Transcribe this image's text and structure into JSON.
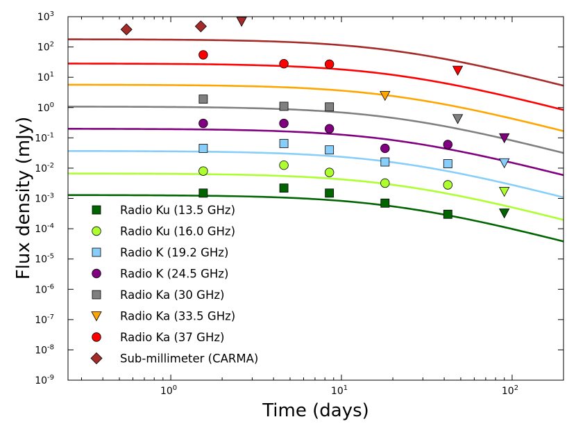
{
  "chart_data": {
    "type": "scatter",
    "xlabel": "Time (days)",
    "ylabel": "Flux density (mJy)",
    "xscale": "log",
    "yscale": "log",
    "xlim": [
      0.25,
      200
    ],
    "ylim": [
      1e-09,
      1000
    ],
    "x_ticks": [
      {
        "value": 1,
        "base": "10",
        "exp": "0"
      },
      {
        "value": 10,
        "base": "10",
        "exp": "1"
      },
      {
        "value": 100,
        "base": "10",
        "exp": "2"
      }
    ],
    "y_ticks": [
      {
        "value": 1e-09,
        "base": "10",
        "exp": "-9"
      },
      {
        "value": 1e-08,
        "base": "10",
        "exp": "-8"
      },
      {
        "value": 1e-07,
        "base": "10",
        "exp": "-7"
      },
      {
        "value": 1e-06,
        "base": "10",
        "exp": "-6"
      },
      {
        "value": 1e-05,
        "base": "10",
        "exp": "-5"
      },
      {
        "value": 0.0001,
        "base": "10",
        "exp": "-4"
      },
      {
        "value": 0.001,
        "base": "10",
        "exp": "-3"
      },
      {
        "value": 0.01,
        "base": "10",
        "exp": "-2"
      },
      {
        "value": 0.1,
        "base": "10",
        "exp": "-1"
      },
      {
        "value": 1,
        "base": "10",
        "exp": "0"
      },
      {
        "value": 10,
        "base": "10",
        "exp": "1"
      },
      {
        "value": 100,
        "base": "10",
        "exp": "2"
      },
      {
        "value": 1000,
        "base": "10",
        "exp": "3"
      }
    ],
    "grid": false,
    "legend_position": "lower-left",
    "series": [
      {
        "name": "Radio Ku (13.5 GHz)",
        "marker": "square",
        "color": "#006400",
        "points": [
          {
            "x": 1.55,
            "y": 0.0015
          },
          {
            "x": 4.6,
            "y": 0.0022
          },
          {
            "x": 8.5,
            "y": 0.0015
          },
          {
            "x": 18,
            "y": 0.0007
          },
          {
            "x": 42,
            "y": 0.0003
          },
          {
            "x": 90,
            "y": 0.00033,
            "limit": "upper"
          }
        ],
        "model": {
          "peak": 0.0013
        }
      },
      {
        "name": "Radio Ku (16.0 GHz)",
        "marker": "circle",
        "color": "#adff2f",
        "points": [
          {
            "x": 1.55,
            "y": 0.008
          },
          {
            "x": 4.6,
            "y": 0.0125
          },
          {
            "x": 8.5,
            "y": 0.0072
          },
          {
            "x": 18,
            "y": 0.0032
          },
          {
            "x": 42,
            "y": 0.0028
          },
          {
            "x": 90,
            "y": 0.0017,
            "limit": "upper"
          }
        ],
        "model": {
          "peak": 0.0067
        }
      },
      {
        "name": "Radio K (19.2 GHz)",
        "marker": "square",
        "color": "#87cefa",
        "points": [
          {
            "x": 1.55,
            "y": 0.045
          },
          {
            "x": 4.6,
            "y": 0.065
          },
          {
            "x": 8.5,
            "y": 0.04
          },
          {
            "x": 18,
            "y": 0.016
          },
          {
            "x": 42,
            "y": 0.014
          },
          {
            "x": 90,
            "y": 0.015,
            "limit": "upper"
          }
        ],
        "model": {
          "peak": 0.037
        }
      },
      {
        "name": "Radio K (24.5 GHz)",
        "marker": "circle",
        "color": "#800080",
        "points": [
          {
            "x": 1.55,
            "y": 0.3
          },
          {
            "x": 4.6,
            "y": 0.3
          },
          {
            "x": 8.5,
            "y": 0.2
          },
          {
            "x": 18,
            "y": 0.045
          },
          {
            "x": 42,
            "y": 0.06
          },
          {
            "x": 90,
            "y": 0.1,
            "limit": "upper"
          }
        ],
        "model": {
          "peak": 0.2
        }
      },
      {
        "name": "Radio Ka (30 GHz)",
        "marker": "square",
        "color": "#808080",
        "points": [
          {
            "x": 1.55,
            "y": 1.9
          },
          {
            "x": 4.6,
            "y": 1.1
          },
          {
            "x": 8.5,
            "y": 1.05
          },
          {
            "x": 48,
            "y": 0.43,
            "limit": "upper"
          }
        ],
        "model": {
          "peak": 1.08
        }
      },
      {
        "name": "Radio Ka (33.5 GHz)",
        "marker": "triangle-down",
        "color": "#ffa500",
        "points": [
          {
            "x": 18,
            "y": 2.5,
            "limit": "upper"
          }
        ],
        "model": {
          "peak": 5.7
        }
      },
      {
        "name": "Radio Ka (37 GHz)",
        "marker": "circle",
        "color": "#ff0000",
        "points": [
          {
            "x": 1.55,
            "y": 55
          },
          {
            "x": 4.6,
            "y": 28
          },
          {
            "x": 8.5,
            "y": 27
          },
          {
            "x": 48,
            "y": 17,
            "limit": "upper"
          }
        ],
        "model": {
          "peak": 28.5
        }
      },
      {
        "name": "Sub-millimeter (CARMA)",
        "marker": "diamond",
        "color": "#a52a2a",
        "points": [
          {
            "x": 0.55,
            "y": 380
          },
          {
            "x": 1.5,
            "y": 480
          },
          {
            "x": 2.6,
            "y": 700,
            "limit": "upper"
          }
        ],
        "model": {
          "peak": 180
        }
      }
    ]
  }
}
